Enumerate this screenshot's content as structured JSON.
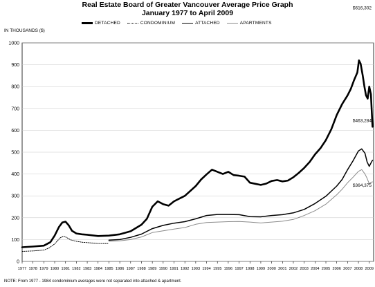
{
  "chart_data": {
    "type": "line",
    "title": "Real Estate Board of Greater Vancouver Average Price Graph",
    "subtitle": "January 1977 to April 2009",
    "units_label": "IN THOUSANDS ($)",
    "note": "NOTE: From 1977 - 1984 condominium averages were not separated into attached & apartment.",
    "ylim": [
      0,
      1000
    ],
    "xlim": [
      1977,
      2009.4
    ],
    "y_ticks": [
      "0",
      "100",
      "200",
      "300",
      "400",
      "500",
      "600",
      "700",
      "800",
      "900",
      "1000"
    ],
    "x_ticks": [
      "1977",
      "1978",
      "1979",
      "1980",
      "1981",
      "1982",
      "1983",
      "1984",
      "1985",
      "1986",
      "1987",
      "1988",
      "1989",
      "1990",
      "1991",
      "1992",
      "1993",
      "1994",
      "1995",
      "1996",
      "1997",
      "1998",
      "1999",
      "2000",
      "2001",
      "2002",
      "2003",
      "2004",
      "2005",
      "2006",
      "2007",
      "2008",
      "2009"
    ],
    "grid": true,
    "legend_position": "top",
    "annotations": [
      {
        "text": "$616,302",
        "x": 2009.3,
        "y": 616
      },
      {
        "text": "$463,284",
        "x": 2009.3,
        "y": 463
      },
      {
        "text": "$364,375",
        "x": 2009.3,
        "y": 364
      }
    ],
    "series": [
      {
        "name": "DETACHED",
        "color": "#000000",
        "style": "thick",
        "points": [
          [
            1977.0,
            65
          ],
          [
            1978.0,
            68
          ],
          [
            1979.0,
            72
          ],
          [
            1979.6,
            88
          ],
          [
            1980.0,
            118
          ],
          [
            1980.4,
            158
          ],
          [
            1980.7,
            178
          ],
          [
            1981.0,
            182
          ],
          [
            1981.3,
            165
          ],
          [
            1981.6,
            140
          ],
          [
            1982.0,
            128
          ],
          [
            1982.5,
            124
          ],
          [
            1983.0,
            122
          ],
          [
            1984.0,
            116
          ],
          [
            1985.0,
            118
          ],
          [
            1986.0,
            124
          ],
          [
            1987.0,
            138
          ],
          [
            1988.0,
            168
          ],
          [
            1988.5,
            195
          ],
          [
            1989.0,
            250
          ],
          [
            1989.5,
            275
          ],
          [
            1990.0,
            262
          ],
          [
            1990.5,
            255
          ],
          [
            1991.0,
            275
          ],
          [
            1992.0,
            300
          ],
          [
            1993.0,
            345
          ],
          [
            1993.5,
            375
          ],
          [
            1994.0,
            398
          ],
          [
            1994.5,
            420
          ],
          [
            1995.0,
            410
          ],
          [
            1995.5,
            400
          ],
          [
            1996.0,
            410
          ],
          [
            1996.5,
            395
          ],
          [
            1997.0,
            392
          ],
          [
            1997.5,
            388
          ],
          [
            1998.0,
            360
          ],
          [
            1998.5,
            355
          ],
          [
            1999.0,
            350
          ],
          [
            1999.5,
            356
          ],
          [
            2000.0,
            368
          ],
          [
            2000.5,
            372
          ],
          [
            2001.0,
            366
          ],
          [
            2001.5,
            370
          ],
          [
            2002.0,
            385
          ],
          [
            2002.5,
            405
          ],
          [
            2003.0,
            428
          ],
          [
            2003.5,
            455
          ],
          [
            2004.0,
            490
          ],
          [
            2004.5,
            518
          ],
          [
            2005.0,
            555
          ],
          [
            2005.5,
            605
          ],
          [
            2006.0,
            670
          ],
          [
            2006.5,
            720
          ],
          [
            2007.0,
            760
          ],
          [
            2007.3,
            790
          ],
          [
            2007.6,
            830
          ],
          [
            2007.9,
            865
          ],
          [
            2008.05,
            920
          ],
          [
            2008.2,
            905
          ],
          [
            2008.4,
            850
          ],
          [
            2008.55,
            800
          ],
          [
            2008.7,
            760
          ],
          [
            2008.85,
            745
          ],
          [
            2009.0,
            800
          ],
          [
            2009.15,
            765
          ],
          [
            2009.3,
            616
          ]
        ]
      },
      {
        "name": "CONDOMINIUM",
        "color": "#000000",
        "style": "dotted",
        "points": [
          [
            1977.0,
            46
          ],
          [
            1978.0,
            48
          ],
          [
            1979.0,
            52
          ],
          [
            1979.5,
            62
          ],
          [
            1980.0,
            80
          ],
          [
            1980.5,
            108
          ],
          [
            1980.8,
            115
          ],
          [
            1981.0,
            112
          ],
          [
            1981.5,
            98
          ],
          [
            1982.0,
            92
          ],
          [
            1982.5,
            88
          ],
          [
            1983.0,
            86
          ],
          [
            1984.0,
            82
          ],
          [
            1984.9,
            82
          ]
        ]
      },
      {
        "name": "ATTACHED",
        "color": "#000000",
        "style": "solid",
        "points": [
          [
            1985.0,
            97
          ],
          [
            1986.0,
            100
          ],
          [
            1987.0,
            110
          ],
          [
            1988.0,
            125
          ],
          [
            1989.0,
            150
          ],
          [
            1990.0,
            165
          ],
          [
            1991.0,
            175
          ],
          [
            1992.0,
            182
          ],
          [
            1993.0,
            195
          ],
          [
            1994.0,
            210
          ],
          [
            1995.0,
            215
          ],
          [
            1996.0,
            215
          ],
          [
            1997.0,
            214
          ],
          [
            1998.0,
            205
          ],
          [
            1999.0,
            204
          ],
          [
            2000.0,
            210
          ],
          [
            2001.0,
            214
          ],
          [
            2002.0,
            222
          ],
          [
            2003.0,
            238
          ],
          [
            2004.0,
            265
          ],
          [
            2005.0,
            298
          ],
          [
            2006.0,
            345
          ],
          [
            2006.5,
            375
          ],
          [
            2007.0,
            420
          ],
          [
            2007.5,
            460
          ],
          [
            2008.0,
            505
          ],
          [
            2008.3,
            515
          ],
          [
            2008.6,
            495
          ],
          [
            2008.8,
            455
          ],
          [
            2009.0,
            435
          ],
          [
            2009.15,
            450
          ],
          [
            2009.3,
            463
          ]
        ]
      },
      {
        "name": "APARTMENTS",
        "color": "#8a8a8a",
        "style": "thin",
        "points": [
          [
            1985.0,
            92
          ],
          [
            1986.0,
            94
          ],
          [
            1987.0,
            100
          ],
          [
            1988.0,
            112
          ],
          [
            1989.0,
            132
          ],
          [
            1990.0,
            140
          ],
          [
            1991.0,
            148
          ],
          [
            1992.0,
            155
          ],
          [
            1993.0,
            170
          ],
          [
            1994.0,
            178
          ],
          [
            1995.0,
            180
          ],
          [
            1996.0,
            182
          ],
          [
            1997.0,
            183
          ],
          [
            1998.0,
            180
          ],
          [
            1999.0,
            176
          ],
          [
            2000.0,
            180
          ],
          [
            2001.0,
            184
          ],
          [
            2002.0,
            192
          ],
          [
            2003.0,
            210
          ],
          [
            2004.0,
            232
          ],
          [
            2005.0,
            262
          ],
          [
            2006.0,
            305
          ],
          [
            2006.5,
            330
          ],
          [
            2007.0,
            360
          ],
          [
            2007.5,
            385
          ],
          [
            2008.0,
            412
          ],
          [
            2008.3,
            420
          ],
          [
            2008.6,
            400
          ],
          [
            2008.8,
            380
          ],
          [
            2009.0,
            355
          ],
          [
            2009.15,
            362
          ],
          [
            2009.3,
            364
          ]
        ]
      }
    ]
  }
}
